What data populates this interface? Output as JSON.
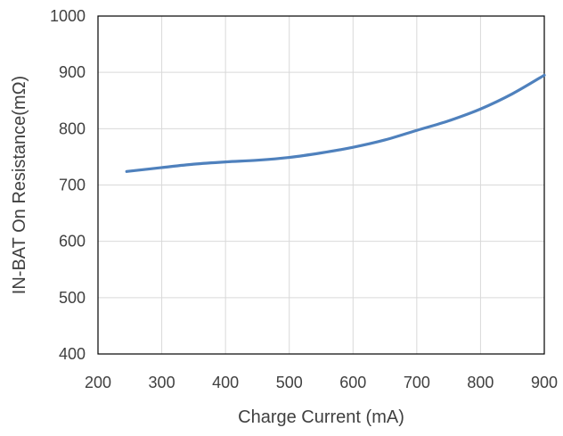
{
  "chart_data": {
    "type": "line",
    "title": "",
    "xlabel": "Charge Current (mA)",
    "ylabel": "IN-BAT On Resistance(mΩ)",
    "xlim": [
      200,
      900
    ],
    "ylim": [
      400,
      1000
    ],
    "xticks": [
      "200",
      "300",
      "400",
      "500",
      "600",
      "700",
      "800",
      "900"
    ],
    "yticks": [
      "400",
      "500",
      "600",
      "700",
      "800",
      "900",
      "1000"
    ],
    "grid": true,
    "legend": "none",
    "series": [
      {
        "color": "#4F81BD",
        "x": [
          245,
          300,
          350,
          400,
          450,
          500,
          550,
          600,
          650,
          700,
          750,
          800,
          850,
          900
        ],
        "y": [
          724,
          731,
          737,
          741,
          744,
          749,
          757,
          767,
          780,
          797,
          814,
          835,
          862,
          895
        ]
      }
    ]
  }
}
